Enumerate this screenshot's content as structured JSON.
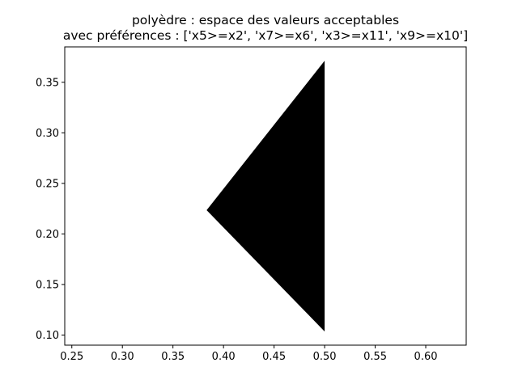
{
  "chart_data": {
    "type": "area",
    "title": "polyèdre : espace des valeurs acceptables",
    "subtitle": "avec préférences : ['x5>=x2', 'x7>=x6', 'x3>=x11', 'x9>=x10']",
    "xlabel": "",
    "ylabel": "",
    "xlim": [
      0.243,
      0.64
    ],
    "ylim": [
      0.09,
      0.385
    ],
    "xticks": [
      {
        "value": 0.25,
        "label": "0.25"
      },
      {
        "value": 0.3,
        "label": "0.30"
      },
      {
        "value": 0.35,
        "label": "0.35"
      },
      {
        "value": 0.4,
        "label": "0.40"
      },
      {
        "value": 0.45,
        "label": "0.45"
      },
      {
        "value": 0.5,
        "label": "0.50"
      },
      {
        "value": 0.55,
        "label": "0.55"
      },
      {
        "value": 0.6,
        "label": "0.60"
      }
    ],
    "yticks": [
      {
        "value": 0.1,
        "label": "0.10"
      },
      {
        "value": 0.15,
        "label": "0.15"
      },
      {
        "value": 0.2,
        "label": "0.20"
      },
      {
        "value": 0.25,
        "label": "0.25"
      },
      {
        "value": 0.3,
        "label": "0.30"
      },
      {
        "value": 0.35,
        "label": "0.35"
      }
    ],
    "grid": false,
    "polygon": {
      "fill": "#000000",
      "vertices": [
        {
          "x": 0.3833,
          "y": 0.2235
        },
        {
          "x": 0.5,
          "y": 0.3713
        },
        {
          "x": 0.5,
          "y": 0.1035
        }
      ]
    }
  }
}
